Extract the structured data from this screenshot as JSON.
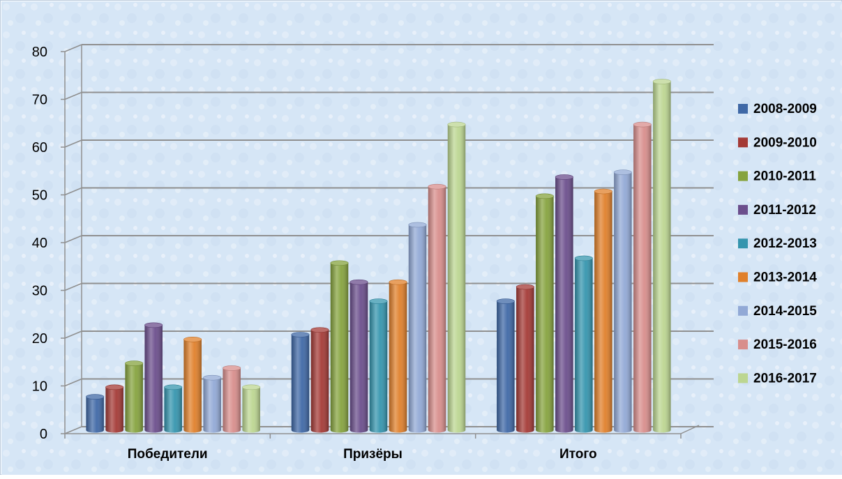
{
  "chart_data": {
    "type": "bar",
    "categories": [
      "Победители",
      "Призёры",
      "Итого"
    ],
    "series": [
      {
        "name": "2008-2009",
        "color": "#3F68A6",
        "values": [
          7,
          20,
          27
        ]
      },
      {
        "name": "2009-2010",
        "color": "#A43A36",
        "values": [
          9,
          21,
          30
        ]
      },
      {
        "name": "2010-2011",
        "color": "#86A33E",
        "values": [
          14,
          35,
          49
        ]
      },
      {
        "name": "2011-2012",
        "color": "#6B4E8C",
        "values": [
          22,
          31,
          53
        ]
      },
      {
        "name": "2012-2013",
        "color": "#3595AE",
        "values": [
          9,
          27,
          36
        ]
      },
      {
        "name": "2013-2014",
        "color": "#E0802B",
        "values": [
          19,
          31,
          50
        ]
      },
      {
        "name": "2014-2015",
        "color": "#92A9D6",
        "values": [
          11,
          43,
          54
        ]
      },
      {
        "name": "2015-2016",
        "color": "#D88E8C",
        "values": [
          13,
          51,
          64
        ]
      },
      {
        "name": "2016-2017",
        "color": "#BCD691",
        "values": [
          9,
          64,
          73
        ]
      }
    ],
    "ylim": [
      0,
      80
    ],
    "yticks": [
      0,
      10,
      20,
      30,
      40,
      50,
      60,
      70,
      80
    ],
    "grid": true,
    "legend": "right",
    "background": "#D9E7F5"
  }
}
